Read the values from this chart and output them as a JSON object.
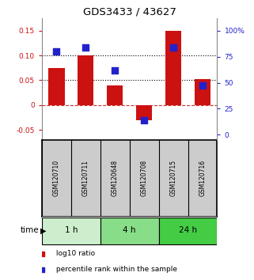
{
  "title": "GDS3433 / 43627",
  "samples": [
    "GSM120710",
    "GSM120711",
    "GSM120648",
    "GSM120708",
    "GSM120715",
    "GSM120716"
  ],
  "log10_ratio": [
    0.075,
    0.1,
    0.04,
    -0.03,
    0.15,
    0.052
  ],
  "percentile_rank": [
    80,
    84,
    62,
    14,
    84,
    47
  ],
  "bar_color": "#cc1111",
  "dot_color": "#2222cc",
  "ylim_left": [
    -0.07,
    0.175
  ],
  "ylim_right": [
    -5,
    112
  ],
  "yticks_left": [
    -0.05,
    0.0,
    0.05,
    0.1,
    0.15
  ],
  "yticks_right": [
    0,
    25,
    50,
    75,
    100
  ],
  "ytick_labels_left": [
    "-0.05",
    "0",
    "0.05",
    "0.10",
    "0.15"
  ],
  "ytick_labels_right": [
    "0",
    "25",
    "50",
    "75",
    "100%"
  ],
  "hlines_dotted": [
    0.05,
    0.1
  ],
  "hline_dashed_color": "#cc3333",
  "groups": [
    {
      "label": "1 h",
      "indices": [
        0,
        1
      ],
      "color": "#cceecc"
    },
    {
      "label": "4 h",
      "indices": [
        2,
        3
      ],
      "color": "#88dd88"
    },
    {
      "label": "24 h",
      "indices": [
        4,
        5
      ],
      "color": "#44cc44"
    }
  ],
  "time_label": "time",
  "legend_items": [
    {
      "label": " log10 ratio",
      "color": "#cc1111"
    },
    {
      "label": " percentile rank within the sample",
      "color": "#2222cc"
    }
  ],
  "bar_width": 0.55,
  "dot_size": 28,
  "background_color": "#ffffff",
  "left_tick_color": "#cc1111",
  "right_tick_color": "#2222cc",
  "sample_box_color": "#cccccc",
  "sample_box_edge": "#555555"
}
